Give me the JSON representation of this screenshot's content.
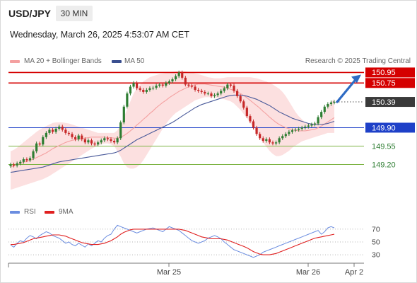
{
  "header": {
    "pair": "USD/JPY",
    "timeframe": "30 MIN",
    "datetime": "Wednesday, March 26, 2025 4:53:07 AM CET"
  },
  "legend": {
    "ma20_bb": "MA 20 + Bollinger Bands",
    "ma50": "MA 50",
    "rsi": "RSI",
    "ma9": "9MA"
  },
  "credit": "Research © 2025 Trading Central",
  "colors": {
    "bull": "#2e7d32",
    "bear": "#c62828",
    "resistance": "#d50000",
    "pivot": "#1e40c8",
    "support": "#7cb342",
    "ma20": "#f4a0a0",
    "band": "#fbd3d3",
    "ma50": "#4a5a9a",
    "rsi": "#6b8de0",
    "rsi_ma": "#e02020",
    "arrow": "#2e6bc4"
  },
  "chart_data": [
    {
      "type": "candlestick",
      "yscale": [
        148.52,
        151.05
      ],
      "x_ticks": [
        "Mar 25",
        "Mar 26",
        "Apr 2"
      ],
      "levels": [
        {
          "value": 150.95,
          "label": "150.95",
          "kind": "resistance"
        },
        {
          "value": 150.75,
          "label": "150.75",
          "kind": "resistance"
        },
        {
          "value": 150.39,
          "label": "150.39",
          "kind": "current"
        },
        {
          "value": 149.9,
          "label": "149.90",
          "kind": "pivot"
        },
        {
          "value": 149.55,
          "label": "149.55",
          "kind": "support"
        },
        {
          "value": 149.2,
          "label": "149.20",
          "kind": "support"
        }
      ],
      "close": [
        149.2,
        149.18,
        149.22,
        149.25,
        149.3,
        149.28,
        149.32,
        149.45,
        149.6,
        149.58,
        149.72,
        149.8,
        149.86,
        149.82,
        149.88,
        149.92,
        149.86,
        149.8,
        149.78,
        149.72,
        149.68,
        149.75,
        149.68,
        149.62,
        149.66,
        149.6,
        149.58,
        149.62,
        149.66,
        149.7,
        149.68,
        149.65,
        149.62,
        149.7,
        150.0,
        150.3,
        150.55,
        150.68,
        150.75,
        150.65,
        150.62,
        150.58,
        150.62,
        150.65,
        150.66,
        150.7,
        150.72,
        150.7,
        150.75,
        150.78,
        150.82,
        150.88,
        150.95,
        150.85,
        150.72,
        150.7,
        150.68,
        150.62,
        150.6,
        150.58,
        150.55,
        150.55,
        150.5,
        150.52,
        150.55,
        150.6,
        150.65,
        150.72,
        150.7,
        150.6,
        150.5,
        150.4,
        150.28,
        150.12,
        150.02,
        149.9,
        149.78,
        149.7,
        149.65,
        149.68,
        149.62,
        149.6,
        149.62,
        149.7,
        149.74,
        149.78,
        149.82,
        149.85,
        149.86,
        149.88,
        149.9,
        149.92,
        149.94,
        149.96,
        149.98,
        150.1,
        150.2,
        150.3,
        150.35,
        150.38,
        150.39
      ],
      "ma20": [
        149.15,
        149.18,
        149.2,
        149.22,
        149.24,
        149.26,
        149.28,
        149.3,
        149.33,
        149.36,
        149.39,
        149.42,
        149.46,
        149.5,
        149.53,
        149.56,
        149.59,
        149.62,
        149.64,
        149.66,
        149.67,
        149.68,
        149.69,
        149.7,
        149.71,
        149.72,
        149.72,
        149.72,
        149.72,
        149.72,
        149.71,
        149.71,
        149.7,
        149.7,
        149.72,
        149.75,
        149.79,
        149.84,
        149.89,
        149.95,
        150.0,
        150.06,
        150.11,
        150.17,
        150.22,
        150.28,
        150.33,
        150.38,
        150.42,
        150.47,
        150.51,
        150.55,
        150.59,
        150.62,
        150.65,
        150.68,
        150.7,
        150.72,
        150.73,
        150.73,
        150.73,
        150.72,
        150.71,
        150.7,
        150.69,
        150.68,
        150.67,
        150.65,
        150.63,
        150.61,
        150.58,
        150.55,
        150.51,
        150.47,
        150.42,
        150.37,
        150.32,
        150.27,
        150.21,
        150.16,
        150.1,
        150.05,
        150.0,
        149.96,
        149.93,
        149.9,
        149.88,
        149.86,
        149.85,
        149.84,
        149.84,
        149.84,
        149.85,
        149.86,
        149.87,
        149.9,
        149.93,
        149.97,
        150.01,
        150.05,
        150.09
      ],
      "bb_upper": [
        149.45,
        149.48,
        149.52,
        149.57,
        149.62,
        149.67,
        149.72,
        149.77,
        149.82,
        149.86,
        149.9,
        149.93,
        149.96,
        149.99,
        150.0,
        150.0,
        150.0,
        149.99,
        149.98,
        149.96,
        149.94,
        149.92,
        149.9,
        149.88,
        149.86,
        149.84,
        149.82,
        149.8,
        149.8,
        149.8,
        149.8,
        149.8,
        149.8,
        149.85,
        149.95,
        150.1,
        150.25,
        150.4,
        150.55,
        150.65,
        150.72,
        150.78,
        150.82,
        150.86,
        150.88,
        150.9,
        150.92,
        150.93,
        150.94,
        150.95,
        150.96,
        150.97,
        150.98,
        150.98,
        150.97,
        150.96,
        150.95,
        150.93,
        150.92,
        150.9,
        150.88,
        150.86,
        150.85,
        150.84,
        150.84,
        150.84,
        150.85,
        150.86,
        150.86,
        150.86,
        150.86,
        150.86,
        150.86,
        150.86,
        150.86,
        150.85,
        150.84,
        150.82,
        150.8,
        150.78,
        150.75,
        150.72,
        150.68,
        150.64,
        150.58,
        150.5,
        150.4,
        150.3,
        150.2,
        150.12,
        150.06,
        150.0,
        149.98,
        149.98,
        149.98,
        150.02,
        150.1,
        150.2,
        150.3,
        150.38,
        150.45
      ],
      "bb_lower": [
        148.72,
        148.74,
        148.76,
        148.78,
        148.8,
        148.82,
        148.84,
        148.86,
        148.88,
        148.9,
        148.92,
        148.95,
        148.98,
        149.02,
        149.06,
        149.1,
        149.14,
        149.18,
        149.22,
        149.26,
        149.3,
        149.34,
        149.38,
        149.42,
        149.46,
        149.5,
        149.53,
        149.56,
        149.58,
        149.6,
        149.6,
        149.58,
        149.55,
        149.45,
        149.35,
        149.22,
        149.15,
        149.12,
        149.12,
        149.15,
        149.2,
        149.28,
        149.38,
        149.48,
        149.58,
        149.68,
        149.78,
        149.88,
        149.97,
        150.05,
        150.12,
        150.18,
        150.22,
        150.26,
        150.3,
        150.34,
        150.38,
        150.42,
        150.44,
        150.46,
        150.48,
        150.48,
        150.48,
        150.47,
        150.46,
        150.45,
        150.44,
        150.42,
        150.4,
        150.36,
        150.3,
        150.24,
        150.16,
        150.08,
        150.0,
        149.9,
        149.8,
        149.72,
        149.62,
        149.54,
        149.46,
        149.4,
        149.36,
        149.36,
        149.38,
        149.42,
        149.46,
        149.52,
        149.56,
        149.6,
        149.64,
        149.66,
        149.68,
        149.7,
        149.72,
        149.74,
        149.76,
        149.78,
        149.8,
        149.8,
        149.8
      ],
      "ma50": [
        149.05,
        149.06,
        149.07,
        149.08,
        149.09,
        149.1,
        149.11,
        149.12,
        149.13,
        149.14,
        149.15,
        149.17,
        149.19,
        149.21,
        149.23,
        149.25,
        149.26,
        149.27,
        149.28,
        149.29,
        149.3,
        149.31,
        149.32,
        149.33,
        149.34,
        149.35,
        149.36,
        149.37,
        149.38,
        149.39,
        149.4,
        149.41,
        149.42,
        149.44,
        149.47,
        149.51,
        149.55,
        149.59,
        149.63,
        149.67,
        149.7,
        149.73,
        149.76,
        149.79,
        149.82,
        149.85,
        149.88,
        149.91,
        149.94,
        149.97,
        150.0,
        150.04,
        150.08,
        150.12,
        150.16,
        150.2,
        150.24,
        150.28,
        150.31,
        150.34,
        150.36,
        150.38,
        150.4,
        150.42,
        150.44,
        150.46,
        150.48,
        150.5,
        150.51,
        150.52,
        150.52,
        150.52,
        150.51,
        150.5,
        150.48,
        150.46,
        150.44,
        150.41,
        150.38,
        150.35,
        150.32,
        150.28,
        150.24,
        150.2,
        150.17,
        150.14,
        150.11,
        150.08,
        150.06,
        150.04,
        150.02,
        150.0,
        149.98,
        149.97,
        149.96,
        149.96,
        149.96,
        149.97,
        149.98,
        150.0,
        150.02
      ]
    },
    {
      "type": "line",
      "yscale": [
        18,
        82
      ],
      "y_ticks": [
        70,
        50,
        30
      ],
      "series": [
        {
          "name": "RSI",
          "values": [
            45,
            42,
            48,
            52,
            50,
            56,
            60,
            58,
            55,
            60,
            63,
            66,
            64,
            60,
            58,
            56,
            52,
            48,
            50,
            46,
            44,
            48,
            45,
            42,
            47,
            44,
            48,
            52,
            50,
            56,
            60,
            62,
            70,
            76,
            74,
            72,
            70,
            68,
            66,
            64,
            66,
            68,
            70,
            71,
            72,
            70,
            68,
            66,
            70,
            74,
            72,
            70,
            68,
            64,
            60,
            56,
            52,
            50,
            48,
            50,
            52,
            56,
            58,
            60,
            58,
            55,
            50,
            46,
            42,
            38,
            36,
            34,
            32,
            30,
            28,
            26,
            28,
            30,
            34,
            36,
            38,
            40,
            42,
            44,
            46,
            48,
            50,
            52,
            54,
            56,
            58,
            60,
            62,
            64,
            66,
            68,
            62,
            66,
            72,
            74,
            72
          ]
        },
        {
          "name": "9MA",
          "values": [
            46,
            46,
            47,
            48,
            49,
            51,
            53,
            55,
            56,
            57,
            58,
            59,
            60,
            61,
            61,
            61,
            60,
            59,
            57,
            55,
            53,
            51,
            49,
            48,
            47,
            46,
            46,
            46,
            47,
            48,
            50,
            52,
            55,
            58,
            62,
            65,
            67,
            69,
            70,
            70,
            70,
            70,
            70,
            70,
            70,
            70,
            70,
            70,
            70,
            70,
            70,
            70,
            70,
            69,
            68,
            66,
            64,
            62,
            60,
            58,
            57,
            56,
            55,
            55,
            55,
            55,
            54,
            53,
            51,
            49,
            47,
            45,
            43,
            41,
            38,
            35,
            33,
            31,
            30,
            30,
            30,
            31,
            32,
            34,
            36,
            38,
            40,
            42,
            44,
            46,
            48,
            50,
            52,
            54,
            56,
            57,
            58,
            59,
            60,
            61,
            62
          ]
        }
      ]
    }
  ]
}
